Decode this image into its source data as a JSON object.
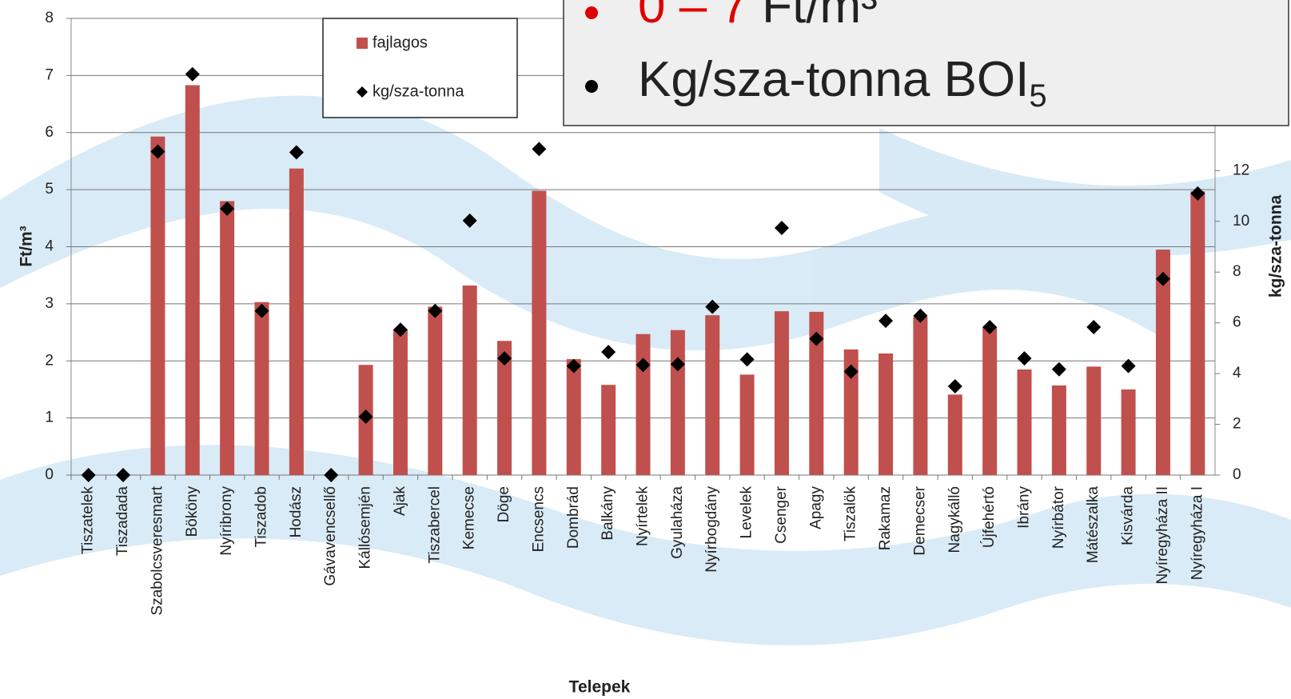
{
  "chart_data": {
    "type": "bar",
    "x_label": "Telepek",
    "y_label": "Ft/m³",
    "y2_label": "kg/sza-tonna",
    "categories": [
      "Tiszatelek",
      "Tiszadada",
      "Szabolcsveresmart",
      "Bököny",
      "Nyíribrony",
      "Tiszadob",
      "Hodász",
      "Gávavencsellő",
      "Kállósemjén",
      "Ajak",
      "Tiszabercel",
      "Kemecse",
      "Döge",
      "Encsencs",
      "Dombrád",
      "Balkány",
      "Nyírtelek",
      "Gyulaháza",
      "Nyírbogdány",
      "Levelek",
      "Csenger",
      "Apagy",
      "Tiszalök",
      "Rakamaz",
      "Demecser",
      "Nagykálló",
      "Újfehértó",
      "Ibrány",
      "Nyírbátor",
      "Mátészalka",
      "Kisvárda",
      "Nyíregyháza II",
      "Nyíregyháza I"
    ],
    "series": [
      {
        "name": "fajlagos",
        "type": "bar",
        "color": "#c0504d",
        "values": [
          0,
          0,
          5.93,
          6.83,
          4.8,
          3.03,
          5.37,
          0,
          1.93,
          2.55,
          2.95,
          3.32,
          2.35,
          4.98,
          2.03,
          1.58,
          2.47,
          2.54,
          2.8,
          1.76,
          2.87,
          2.86,
          2.2,
          2.13,
          2.77,
          1.41,
          2.6,
          1.85,
          1.57,
          1.9,
          1.5,
          3.95,
          4.97
        ]
      },
      {
        "name": "kg/sza-tonna",
        "type": "scatter",
        "axis": "y2",
        "color": "#000000",
        "values": [
          0,
          0,
          12.75,
          15.8,
          10.5,
          6.47,
          12.72,
          0,
          2.3,
          5.73,
          6.47,
          10.03,
          4.6,
          12.85,
          4.3,
          4.85,
          4.34,
          4.37,
          6.63,
          4.56,
          9.74,
          5.37,
          4.08,
          6.08,
          6.28,
          3.5,
          5.83,
          4.6,
          4.17,
          5.83,
          4.3,
          7.73,
          11.1
        ]
      }
    ],
    "ylim": [
      0,
      8
    ],
    "yticks": [
      0,
      1,
      2,
      3,
      4,
      5,
      6,
      7,
      8
    ],
    "y2lim": [
      0,
      18
    ],
    "y2ticks": [
      0,
      2,
      4,
      6,
      8,
      10,
      12,
      14,
      16,
      18
    ],
    "grid": true,
    "legend": "top-left",
    "overlay": [
      {
        "highlight": "0 – 7",
        "text": "Ft/m³"
      },
      {
        "text": "Kg/sza-tonna BOI",
        "subscript": "5"
      }
    ]
  }
}
